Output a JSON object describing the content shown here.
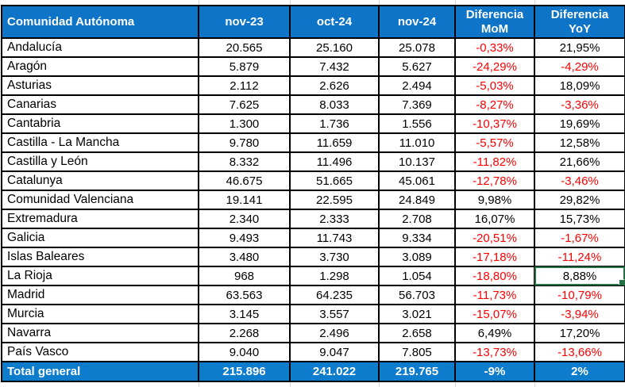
{
  "colors": {
    "header_bg": "#0d74c7",
    "total_bg": "#0d7ccd",
    "negative_text": "#fe0000",
    "selection_border": "#217346",
    "gridline": "#d6d6d6"
  },
  "table": {
    "headers": [
      "Comunidad Autónoma",
      "nov-23",
      "oct-24",
      "nov-24",
      "Diferencia MoM",
      "Diferencia YoY"
    ],
    "rows": [
      {
        "name": "Andalucía",
        "nov23": "20.565",
        "oct24": "25.160",
        "nov24": "25.078",
        "mom": "-0,33%",
        "yoy": "21,95%"
      },
      {
        "name": "Aragón",
        "nov23": "5.879",
        "oct24": "7.432",
        "nov24": "5.627",
        "mom": "-24,29%",
        "yoy": "-4,29%"
      },
      {
        "name": "Asturias",
        "nov23": "2.112",
        "oct24": "2.626",
        "nov24": "2.494",
        "mom": "-5,03%",
        "yoy": "18,09%"
      },
      {
        "name": "Canarias",
        "nov23": "7.625",
        "oct24": "8.033",
        "nov24": "7.369",
        "mom": "-8,27%",
        "yoy": "-3,36%"
      },
      {
        "name": "Cantabria",
        "nov23": "1.300",
        "oct24": "1.736",
        "nov24": "1.556",
        "mom": "-10,37%",
        "yoy": "19,69%"
      },
      {
        "name": "Castilla - La Mancha",
        "nov23": "9.780",
        "oct24": "11.659",
        "nov24": "11.010",
        "mom": "-5,57%",
        "yoy": "12,58%"
      },
      {
        "name": "Castilla y León",
        "nov23": "8.332",
        "oct24": "11.496",
        "nov24": "10.137",
        "mom": "-11,82%",
        "yoy": "21,66%"
      },
      {
        "name": "Catalunya",
        "nov23": "46.675",
        "oct24": "51.665",
        "nov24": "45.061",
        "mom": "-12,78%",
        "yoy": "-3,46%"
      },
      {
        "name": "Comunidad Valenciana",
        "nov23": "19.141",
        "oct24": "22.595",
        "nov24": "24.849",
        "mom": "9,98%",
        "yoy": "29,82%"
      },
      {
        "name": "Extremadura",
        "nov23": "2.340",
        "oct24": "2.333",
        "nov24": "2.708",
        "mom": "16,07%",
        "yoy": "15,73%"
      },
      {
        "name": "Galicia",
        "nov23": "9.493",
        "oct24": "11.743",
        "nov24": "9.334",
        "mom": "-20,51%",
        "yoy": "-1,67%"
      },
      {
        "name": "Islas Baleares",
        "nov23": "3.480",
        "oct24": "3.730",
        "nov24": "3.089",
        "mom": "-17,18%",
        "yoy": "-11,24%"
      },
      {
        "name": "La Rioja",
        "nov23": "968",
        "oct24": "1.298",
        "nov24": "1.054",
        "mom": "-18,80%",
        "yoy": "8,88%"
      },
      {
        "name": "Madrid",
        "nov23": "63.563",
        "oct24": "64.235",
        "nov24": "56.703",
        "mom": "-11,73%",
        "yoy": "-10,79%"
      },
      {
        "name": "Murcia",
        "nov23": "3.145",
        "oct24": "3.557",
        "nov24": "3.021",
        "mom": "-15,07%",
        "yoy": "-3,94%"
      },
      {
        "name": "Navarra",
        "nov23": "2.268",
        "oct24": "2.496",
        "nov24": "2.658",
        "mom": "6,49%",
        "yoy": "17,20%"
      },
      {
        "name": "País Vasco",
        "nov23": "9.040",
        "oct24": "9.047",
        "nov24": "7.805",
        "mom": "-13,73%",
        "yoy": "-13,66%"
      }
    ],
    "total": {
      "label": "Total general",
      "nov23": "215.896",
      "oct24": "241.022",
      "nov24": "219.765",
      "mom": "-9%",
      "yoy": "2%"
    }
  },
  "selection": {
    "row": "La Rioja",
    "column": "yoy"
  },
  "gridline_positions": [
    249,
    364,
    476,
    572,
    672
  ]
}
